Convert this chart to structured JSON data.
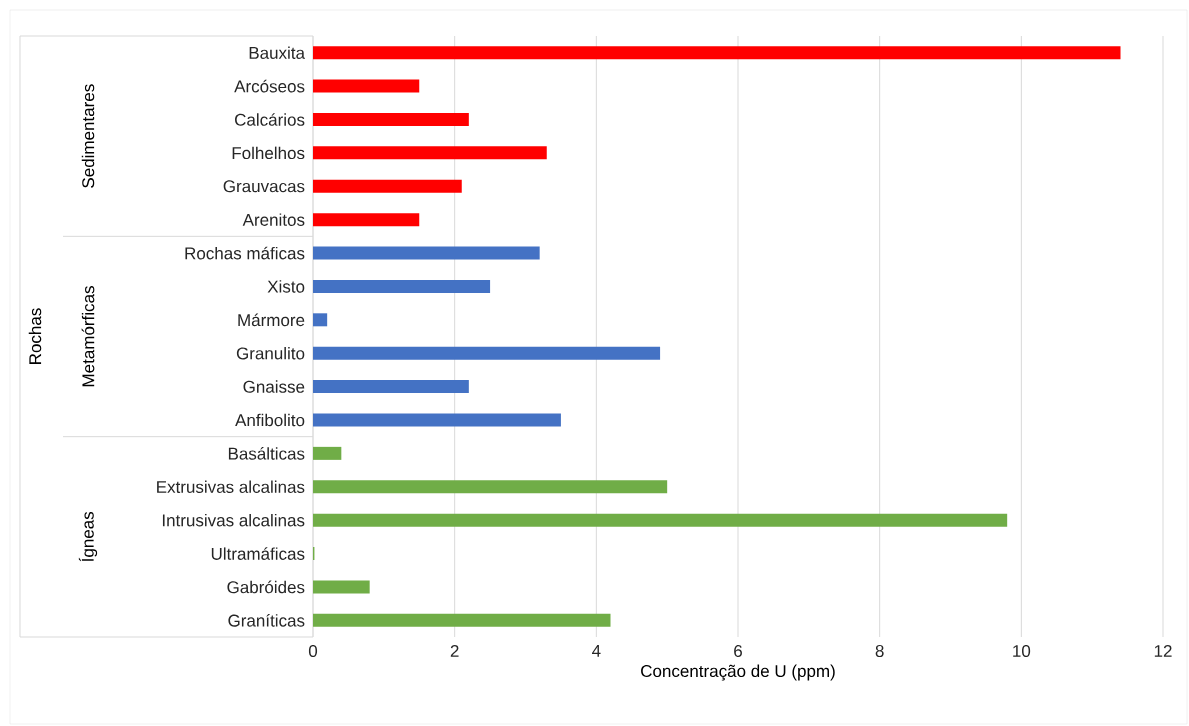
{
  "chart_data": {
    "type": "bar",
    "orientation": "horizontal",
    "xlabel": "Concentração de U (ppm)",
    "annotations": [
      "Sedimentares",
      "Metamórficas",
      "Ígneas",
      "Rochas"
    ],
    "categories": [
      "Bauxita",
      "Arcóseos",
      "Calcários",
      "Folhelhos",
      "Grauvacas",
      "Arenitos",
      "Rochas máficas",
      "Xisto",
      "Mármore",
      "Granulito",
      "Gnaisse",
      "Anfibolito",
      "Basálticas",
      "Extrusivas alcalinas",
      "Intrusivas alcalinas",
      "Ultramáficas",
      "Gabróides",
      "Graníticas"
    ],
    "series": [
      {
        "color": "#ff0000",
        "values": [
          11.4,
          1.5,
          2.2,
          3.3,
          2.1,
          1.5,
          null,
          null,
          null,
          null,
          null,
          null,
          null,
          null,
          null,
          null,
          null,
          null
        ]
      },
      {
        "color": "#4472c4",
        "values": [
          null,
          null,
          null,
          null,
          null,
          null,
          3.2,
          2.5,
          0.2,
          4.9,
          2.2,
          3.5,
          null,
          null,
          null,
          null,
          null,
          null
        ]
      },
      {
        "color": "#70ad47",
        "values": [
          null,
          null,
          null,
          null,
          null,
          null,
          null,
          null,
          null,
          null,
          null,
          null,
          0.4,
          5.0,
          9.8,
          0.02,
          0.8,
          4.2
        ]
      }
    ],
    "xlim": [
      0,
      12
    ],
    "xticks": [
      0,
      2,
      4,
      6,
      8,
      10,
      12
    ],
    "grid": "x"
  }
}
